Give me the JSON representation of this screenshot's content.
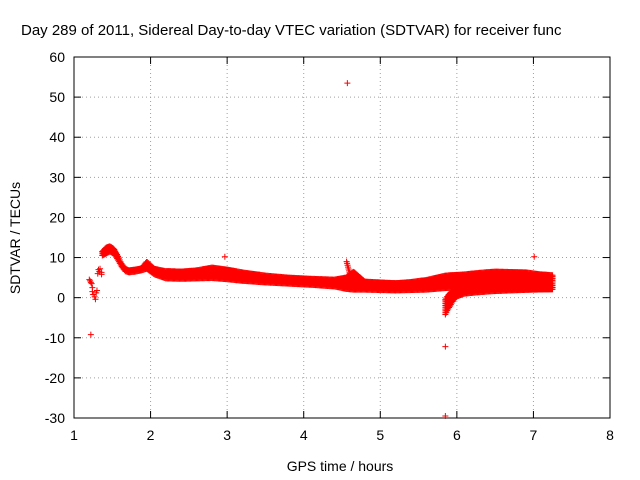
{
  "chart_data": {
    "type": "scatter",
    "title": "Day 289 of 2011, Sidereal Day-to-day VTEC variation (SDTVAR) for receiver func",
    "xlabel": "GPS time / hours",
    "ylabel": "SDTVAR / TECUs",
    "xlim": [
      1,
      8
    ],
    "ylim": [
      -30,
      60
    ],
    "x_ticks": [
      "1",
      "2",
      "3",
      "4",
      "5",
      "6",
      "7",
      "8"
    ],
    "y_ticks": [
      "-30",
      "-20",
      "-10",
      "0",
      "10",
      "20",
      "30",
      "40",
      "50",
      "60"
    ],
    "grid": true,
    "marker": "+",
    "point_color": "#ff0000",
    "outliers": [
      {
        "x": 4.57,
        "y": 53.5
      },
      {
        "x": 1.22,
        "y": -9.2
      },
      {
        "x": 5.85,
        "y": -12.2
      },
      {
        "x": 5.85,
        "y": -29.5
      },
      {
        "x": 2.97,
        "y": 10.2
      },
      {
        "x": 7.01,
        "y": 10.2
      }
    ],
    "early_cluster": [
      {
        "x": 1.2,
        "y": 4.5
      },
      {
        "x": 1.21,
        "y": 4.2
      },
      {
        "x": 1.22,
        "y": 3.8
      },
      {
        "x": 1.23,
        "y": 3.5
      },
      {
        "x": 1.24,
        "y": 2.5
      },
      {
        "x": 1.24,
        "y": 1.5
      },
      {
        "x": 1.25,
        "y": 0.8
      },
      {
        "x": 1.27,
        "y": 0.2
      },
      {
        "x": 1.28,
        "y": -0.4
      },
      {
        "x": 1.29,
        "y": 1.2
      },
      {
        "x": 1.3,
        "y": 1.8
      },
      {
        "x": 1.31,
        "y": 6.0
      },
      {
        "x": 1.32,
        "y": 7.0
      },
      {
        "x": 1.33,
        "y": 6.5
      },
      {
        "x": 1.34,
        "y": 7.2
      },
      {
        "x": 1.36,
        "y": 6.3
      },
      {
        "x": 1.36,
        "y": 5.8
      }
    ],
    "main_band": {
      "x": [
        1.37,
        1.42,
        1.47,
        1.52,
        1.57,
        1.62,
        1.67,
        1.72,
        1.8,
        1.88,
        1.95,
        2.05,
        2.2,
        2.4,
        2.6,
        2.8,
        3.0,
        3.2,
        3.5,
        3.8,
        4.1,
        4.4,
        4.55,
        4.65,
        4.8,
        5.0,
        5.2,
        5.4,
        5.6,
        5.85,
        6.1,
        6.3,
        6.5,
        6.7,
        6.9,
        7.1,
        7.25
      ],
      "upper": [
        11.5,
        12.5,
        12.8,
        12.2,
        10.5,
        8.5,
        7.2,
        6.8,
        7.0,
        7.3,
        9.0,
        7.2,
        6.6,
        6.5,
        6.8,
        7.5,
        7.0,
        6.3,
        5.5,
        5.0,
        4.7,
        4.5,
        5.0,
        6.5,
        4.0,
        3.8,
        3.6,
        3.9,
        4.4,
        5.5,
        5.8,
        6.2,
        6.5,
        6.4,
        6.3,
        5.8,
        5.6
      ],
      "lower": [
        10.5,
        11.0,
        11.5,
        11.0,
        9.5,
        7.8,
        6.6,
        6.3,
        6.5,
        6.8,
        7.2,
        5.8,
        4.8,
        4.7,
        4.8,
        4.9,
        4.6,
        4.2,
        3.8,
        3.5,
        3.2,
        2.8,
        2.2,
        2.0,
        2.0,
        1.9,
        1.8,
        1.9,
        2.0,
        2.4,
        2.4,
        2.3,
        2.2,
        2.2,
        2.2,
        2.1,
        2.1
      ]
    },
    "descending_tail": {
      "x0": 4.56,
      "x1": 4.65,
      "y0": 9.0,
      "y1": 2.5
    },
    "lower_branch": {
      "x": [
        5.85,
        5.88,
        5.92,
        5.96,
        6.0,
        6.1,
        6.25,
        6.45,
        6.7,
        7.0,
        7.25
      ],
      "upper": [
        -0.5,
        0.5,
        1.3,
        1.8,
        2.3,
        2.8,
        3.3,
        3.7,
        4.0,
        4.2,
        4.4
      ],
      "lower": [
        -4.2,
        -3.0,
        -1.8,
        -0.5,
        0.3,
        1.0,
        1.3,
        1.6,
        1.8,
        2.0,
        2.1
      ]
    }
  }
}
